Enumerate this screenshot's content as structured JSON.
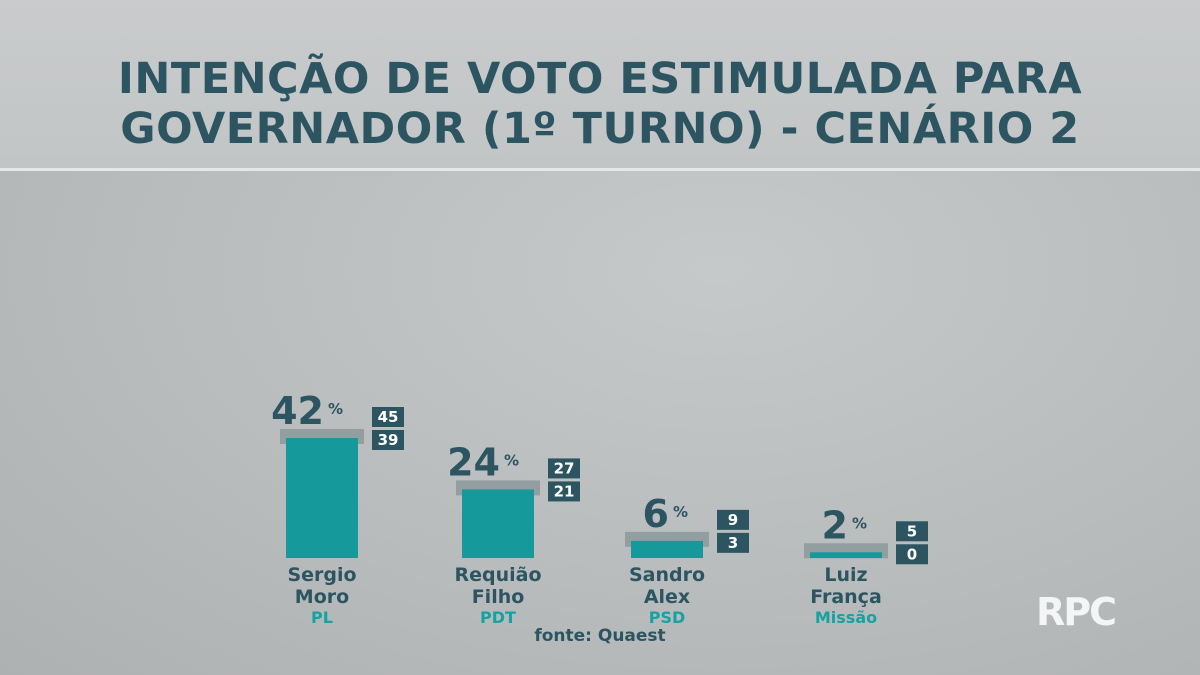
{
  "header": {
    "title_line1": "INTENÇÃO DE VOTO ESTIMULADA PARA",
    "title_line2": "GOVERNADOR (1º TURNO) - CENÁRIO 2"
  },
  "chart_data": {
    "type": "bar",
    "title": "INTENÇÃO DE VOTO ESTIMULADA PARA GOVERNADOR (1º TURNO) - CENÁRIO 2",
    "unit": "%",
    "ylim": [
      0,
      45
    ],
    "categories": [
      {
        "name_line1": "Sergio",
        "name_line2": "Moro",
        "party": "PL",
        "value": 42,
        "upper": 45,
        "lower": 39
      },
      {
        "name_line1": "Requião",
        "name_line2": "Filho",
        "party": "PDT",
        "value": 24,
        "upper": 27,
        "lower": 21
      },
      {
        "name_line1": "Sandro",
        "name_line2": "Alex",
        "party": "PSD",
        "value": 6,
        "upper": 9,
        "lower": 3
      },
      {
        "name_line1": "Luiz",
        "name_line2": "França",
        "party": "Missão",
        "value": 2,
        "upper": 5,
        "lower": 0
      }
    ],
    "colors": {
      "bar": "#16999a",
      "margin_band": "#8f9a9c",
      "range_box": "#2c5561",
      "text": "#2c5561",
      "party": "#16a2a3"
    }
  },
  "footer": {
    "source": "fonte: Quaest",
    "logo": "RPC"
  }
}
